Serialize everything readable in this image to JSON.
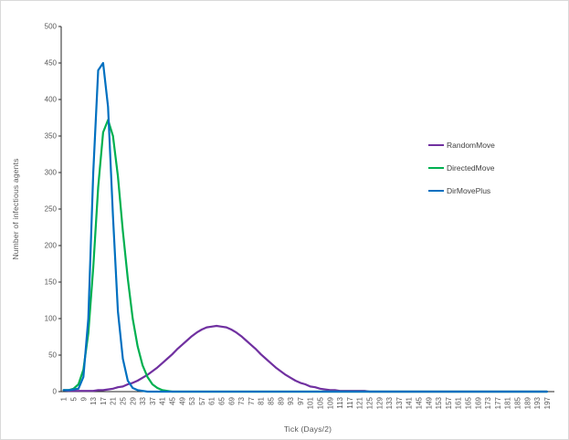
{
  "chart_data": {
    "type": "line",
    "title": "",
    "xlabel": "Tick (Days/2)",
    "ylabel": "Number of infectious agents",
    "xlim": [
      1,
      197
    ],
    "ylim": [
      0,
      500
    ],
    "grid": false,
    "legend_position": "right",
    "y_ticks": [
      0,
      50,
      100,
      150,
      200,
      250,
      300,
      350,
      400,
      450,
      500
    ],
    "x_ticks": [
      1,
      5,
      9,
      13,
      17,
      21,
      25,
      29,
      33,
      37,
      41,
      45,
      49,
      53,
      57,
      61,
      65,
      69,
      73,
      77,
      81,
      85,
      89,
      93,
      97,
      101,
      105,
      109,
      113,
      117,
      121,
      125,
      129,
      133,
      137,
      141,
      145,
      149,
      153,
      157,
      161,
      165,
      169,
      173,
      177,
      181,
      185,
      189,
      193,
      197
    ],
    "x": [
      1,
      3,
      5,
      7,
      9,
      11,
      13,
      15,
      17,
      19,
      21,
      23,
      25,
      27,
      29,
      31,
      33,
      35,
      37,
      39,
      41,
      43,
      45,
      47,
      49,
      51,
      53,
      55,
      57,
      59,
      61,
      63,
      65,
      67,
      69,
      71,
      73,
      75,
      77,
      79,
      81,
      83,
      85,
      87,
      89,
      91,
      93,
      95,
      97,
      99,
      101,
      103,
      105,
      107,
      109,
      111,
      113,
      115,
      117,
      119,
      121,
      123,
      125,
      127,
      129,
      131,
      133,
      135,
      137,
      139,
      141,
      143,
      145,
      147,
      149,
      151,
      153,
      155,
      157,
      159,
      161,
      163,
      165,
      167,
      169,
      171,
      173,
      175,
      177,
      179,
      181,
      183,
      185,
      187,
      189,
      191,
      193,
      195,
      197
    ],
    "series": [
      {
        "name": "RandomMove",
        "color": "#7030A0",
        "values": [
          2,
          1,
          1,
          1,
          1,
          1,
          1,
          2,
          2,
          3,
          4,
          6,
          7,
          10,
          12,
          15,
          19,
          23,
          28,
          33,
          39,
          45,
          51,
          58,
          64,
          70,
          76,
          81,
          85,
          88,
          89,
          90,
          89,
          88,
          85,
          81,
          76,
          70,
          64,
          58,
          51,
          45,
          39,
          33,
          28,
          23,
          19,
          15,
          12,
          10,
          7,
          6,
          4,
          3,
          2,
          2,
          1,
          1,
          1,
          1,
          1,
          1,
          0,
          0,
          0,
          0,
          0,
          0,
          0,
          0,
          0,
          0,
          0,
          0,
          0,
          0,
          0,
          0,
          0,
          0,
          0,
          0,
          0,
          0,
          0,
          0,
          0,
          0,
          0,
          0,
          0,
          0,
          0,
          0,
          0,
          0,
          0,
          0,
          0
        ]
      },
      {
        "name": "DirectedMove",
        "color": "#00B050",
        "values": [
          2,
          2,
          4,
          10,
          30,
          80,
          170,
          280,
          355,
          372,
          350,
          295,
          220,
          155,
          100,
          62,
          36,
          20,
          10,
          5,
          2,
          1,
          0,
          0,
          0,
          0,
          0,
          0,
          0,
          0,
          0,
          0,
          0,
          0,
          0,
          0,
          0,
          0,
          0,
          0,
          0,
          0,
          0,
          0,
          0,
          0,
          0,
          0,
          0,
          0,
          0,
          0,
          0,
          0,
          0,
          0,
          0,
          0,
          0,
          0,
          0,
          0,
          0,
          0,
          0,
          0,
          0,
          0,
          0,
          0,
          0,
          0,
          0,
          0,
          0,
          0,
          0,
          0,
          0,
          0,
          0,
          0,
          0,
          0,
          0,
          0,
          0,
          0,
          0,
          0,
          0,
          0,
          0,
          0,
          0,
          0,
          0,
          0,
          0
        ]
      },
      {
        "name": "DirMovePlus",
        "color": "#0070C0",
        "values": [
          2,
          2,
          3,
          4,
          20,
          100,
          300,
          440,
          450,
          390,
          240,
          110,
          45,
          15,
          5,
          2,
          1,
          0,
          0,
          0,
          0,
          0,
          0,
          0,
          0,
          0,
          0,
          0,
          0,
          0,
          0,
          0,
          0,
          0,
          0,
          0,
          0,
          0,
          0,
          0,
          0,
          0,
          0,
          0,
          0,
          0,
          0,
          0,
          0,
          0,
          0,
          0,
          0,
          0,
          0,
          0,
          0,
          0,
          0,
          0,
          0,
          0,
          0,
          0,
          0,
          0,
          0,
          0,
          0,
          0,
          0,
          0,
          0,
          0,
          0,
          0,
          0,
          0,
          0,
          0,
          0,
          0,
          0,
          0,
          0,
          0,
          0,
          0,
          0,
          0,
          0,
          0,
          0,
          0,
          0,
          0,
          0,
          0,
          0
        ]
      }
    ]
  }
}
